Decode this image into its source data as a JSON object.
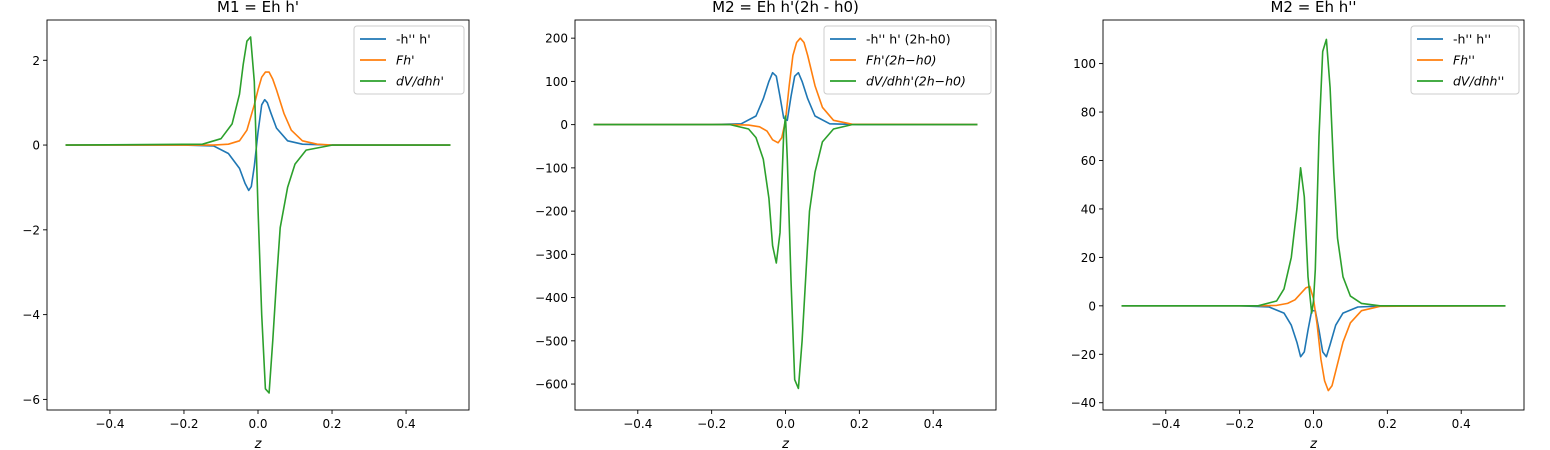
{
  "colors": {
    "blue": "#1f77b4",
    "orange": "#ff7f0e",
    "green": "#2ca02c"
  },
  "chart_data": [
    {
      "type": "line",
      "title": "M1 = Eh h'",
      "xlabel": "z",
      "ylabel": "",
      "xlim": [
        -0.57,
        0.57
      ],
      "ylim": [
        -6.25,
        2.95
      ],
      "xticks": [
        -0.4,
        -0.2,
        0.0,
        0.2,
        0.4
      ],
      "xtick_labels": [
        "−0.4",
        "−0.2",
        "0.0",
        "0.2",
        "0.4"
      ],
      "yticks": [
        2,
        0,
        -2,
        -4,
        -6
      ],
      "ytick_labels": [
        "2",
        "0",
        "−2",
        "−4",
        "−6"
      ],
      "legend_position": "top-right",
      "series": [
        {
          "name": "-h'' h'",
          "color": "blue",
          "x": [
            -0.52,
            -0.2,
            -0.12,
            -0.08,
            -0.05,
            -0.035,
            -0.025,
            -0.018,
            -0.01,
            0.0,
            0.01,
            0.018,
            0.025,
            0.035,
            0.05,
            0.08,
            0.12,
            0.2,
            0.52
          ],
          "y": [
            0,
            0,
            -0.02,
            -0.2,
            -0.55,
            -0.9,
            -1.07,
            -0.98,
            -0.5,
            0.3,
            0.95,
            1.07,
            1.0,
            0.75,
            0.4,
            0.1,
            0.02,
            0,
            0
          ]
        },
        {
          "name": "Fh'",
          "color": "orange",
          "x": [
            -0.52,
            -0.2,
            -0.12,
            -0.08,
            -0.05,
            -0.03,
            -0.01,
            0.0,
            0.01,
            0.02,
            0.03,
            0.04,
            0.05,
            0.07,
            0.09,
            0.12,
            0.16,
            0.2,
            0.52
          ],
          "y": [
            0,
            0,
            0,
            0.02,
            0.1,
            0.35,
            0.95,
            1.3,
            1.6,
            1.72,
            1.72,
            1.55,
            1.3,
            0.75,
            0.35,
            0.1,
            0.02,
            0,
            0
          ]
        },
        {
          "name": "dV/dhh'",
          "color": "green",
          "x": [
            -0.52,
            -0.15,
            -0.1,
            -0.07,
            -0.05,
            -0.04,
            -0.03,
            -0.02,
            -0.01,
            0.0,
            0.01,
            0.02,
            0.03,
            0.04,
            0.05,
            0.06,
            0.08,
            0.1,
            0.13,
            0.2,
            0.52
          ],
          "y": [
            0,
            0.02,
            0.15,
            0.5,
            1.2,
            1.9,
            2.45,
            2.55,
            1.5,
            -1.5,
            -4.0,
            -5.75,
            -5.85,
            -4.6,
            -3.2,
            -1.95,
            -1.0,
            -0.45,
            -0.12,
            0,
            0
          ]
        }
      ]
    },
    {
      "type": "line",
      "title": "M2 = Eh h'(2h - h0)",
      "xlabel": "z",
      "ylabel": "",
      "xlim": [
        -0.57,
        0.57
      ],
      "ylim": [
        -660,
        242
      ],
      "xticks": [
        -0.4,
        -0.2,
        0.0,
        0.2,
        0.4
      ],
      "xtick_labels": [
        "−0.4",
        "−0.2",
        "0.0",
        "0.2",
        "0.4"
      ],
      "yticks": [
        200,
        100,
        0,
        -100,
        -200,
        -300,
        -400,
        -500,
        -600
      ],
      "ytick_labels": [
        "200",
        "100",
        "0",
        "−100",
        "−200",
        "−300",
        "−400",
        "−500",
        "−600"
      ],
      "legend_position": "top-right",
      "series": [
        {
          "name": "-h'' h' (2h-h0)",
          "color": "blue",
          "x": [
            -0.52,
            -0.2,
            -0.12,
            -0.08,
            -0.06,
            -0.045,
            -0.035,
            -0.025,
            -0.015,
            -0.005,
            0.005,
            0.015,
            0.025,
            0.035,
            0.045,
            0.06,
            0.08,
            0.12,
            0.2,
            0.52
          ],
          "y": [
            0,
            0,
            2,
            20,
            60,
            100,
            120,
            112,
            65,
            15,
            10,
            65,
            112,
            120,
            100,
            60,
            20,
            2,
            0,
            0
          ]
        },
        {
          "name": "Fh'(2h−h0)",
          "color": "orange",
          "x": [
            -0.52,
            -0.15,
            -0.1,
            -0.07,
            -0.05,
            -0.035,
            -0.02,
            -0.01,
            0.0,
            0.01,
            0.02,
            0.03,
            0.04,
            0.05,
            0.06,
            0.08,
            0.1,
            0.13,
            0.18,
            0.52
          ],
          "y": [
            0,
            0,
            -1,
            -5,
            -15,
            -35,
            -42,
            -30,
            10,
            90,
            160,
            190,
            200,
            190,
            160,
            90,
            40,
            10,
            1,
            0
          ]
        },
        {
          "name": "dV/dhh'(2h−h0)",
          "color": "green",
          "x": [
            -0.52,
            -0.15,
            -0.1,
            -0.08,
            -0.06,
            -0.045,
            -0.035,
            -0.025,
            -0.015,
            -0.005,
            0.0,
            0.005,
            0.015,
            0.025,
            0.035,
            0.045,
            0.055,
            0.065,
            0.08,
            0.1,
            0.13,
            0.18,
            0.52
          ],
          "y": [
            0,
            0,
            -10,
            -30,
            -80,
            -170,
            -280,
            -320,
            -250,
            -20,
            20,
            -80,
            -360,
            -590,
            -610,
            -500,
            -350,
            -200,
            -110,
            -40,
            -10,
            0,
            0
          ]
        }
      ]
    },
    {
      "type": "line",
      "title": "M2 = Eh h''",
      "xlabel": "z",
      "ylabel": "",
      "xlim": [
        -0.57,
        0.57
      ],
      "ylim": [
        -43,
        118
      ],
      "xticks": [
        -0.4,
        -0.2,
        0.0,
        0.2,
        0.4
      ],
      "xtick_labels": [
        "−0.4",
        "−0.2",
        "0.0",
        "0.2",
        "0.4"
      ],
      "yticks": [
        100,
        80,
        60,
        40,
        20,
        0,
        -20,
        -40
      ],
      "ytick_labels": [
        "100",
        "80",
        "60",
        "40",
        "20",
        "0",
        "−20",
        "−40"
      ],
      "legend_position": "top-right",
      "series": [
        {
          "name": "-h'' h''",
          "color": "blue",
          "x": [
            -0.52,
            -0.2,
            -0.12,
            -0.08,
            -0.06,
            -0.045,
            -0.035,
            -0.025,
            -0.015,
            -0.005,
            0.005,
            0.015,
            0.025,
            0.035,
            0.045,
            0.06,
            0.08,
            0.12,
            0.2,
            0.52
          ],
          "y": [
            0,
            0,
            -0.5,
            -3,
            -8,
            -15,
            -21,
            -19,
            -10,
            -2,
            -2,
            -10,
            -19,
            -21,
            -16,
            -8,
            -3,
            -0.5,
            0,
            0
          ]
        },
        {
          "name": "Fh''",
          "color": "orange",
          "x": [
            -0.52,
            -0.15,
            -0.1,
            -0.07,
            -0.05,
            -0.035,
            -0.02,
            -0.01,
            0.0,
            0.01,
            0.02,
            0.03,
            0.04,
            0.05,
            0.06,
            0.08,
            0.1,
            0.13,
            0.18,
            0.52
          ],
          "y": [
            0,
            0,
            0.2,
            1,
            2.5,
            5,
            7.5,
            8,
            3,
            -8,
            -22,
            -31,
            -35,
            -33,
            -27,
            -15,
            -7,
            -2,
            -0.2,
            0
          ]
        },
        {
          "name": "dV/dhh''",
          "color": "green",
          "x": [
            -0.52,
            -0.15,
            -0.1,
            -0.08,
            -0.06,
            -0.045,
            -0.035,
            -0.025,
            -0.015,
            -0.005,
            0.0,
            0.005,
            0.015,
            0.025,
            0.035,
            0.045,
            0.055,
            0.065,
            0.08,
            0.1,
            0.13,
            0.18,
            0.52
          ],
          "y": [
            0,
            0,
            2,
            7,
            20,
            40,
            57,
            45,
            12,
            -3,
            2,
            15,
            70,
            105,
            110,
            90,
            55,
            28,
            12,
            4,
            1,
            0,
            0
          ]
        }
      ]
    }
  ]
}
